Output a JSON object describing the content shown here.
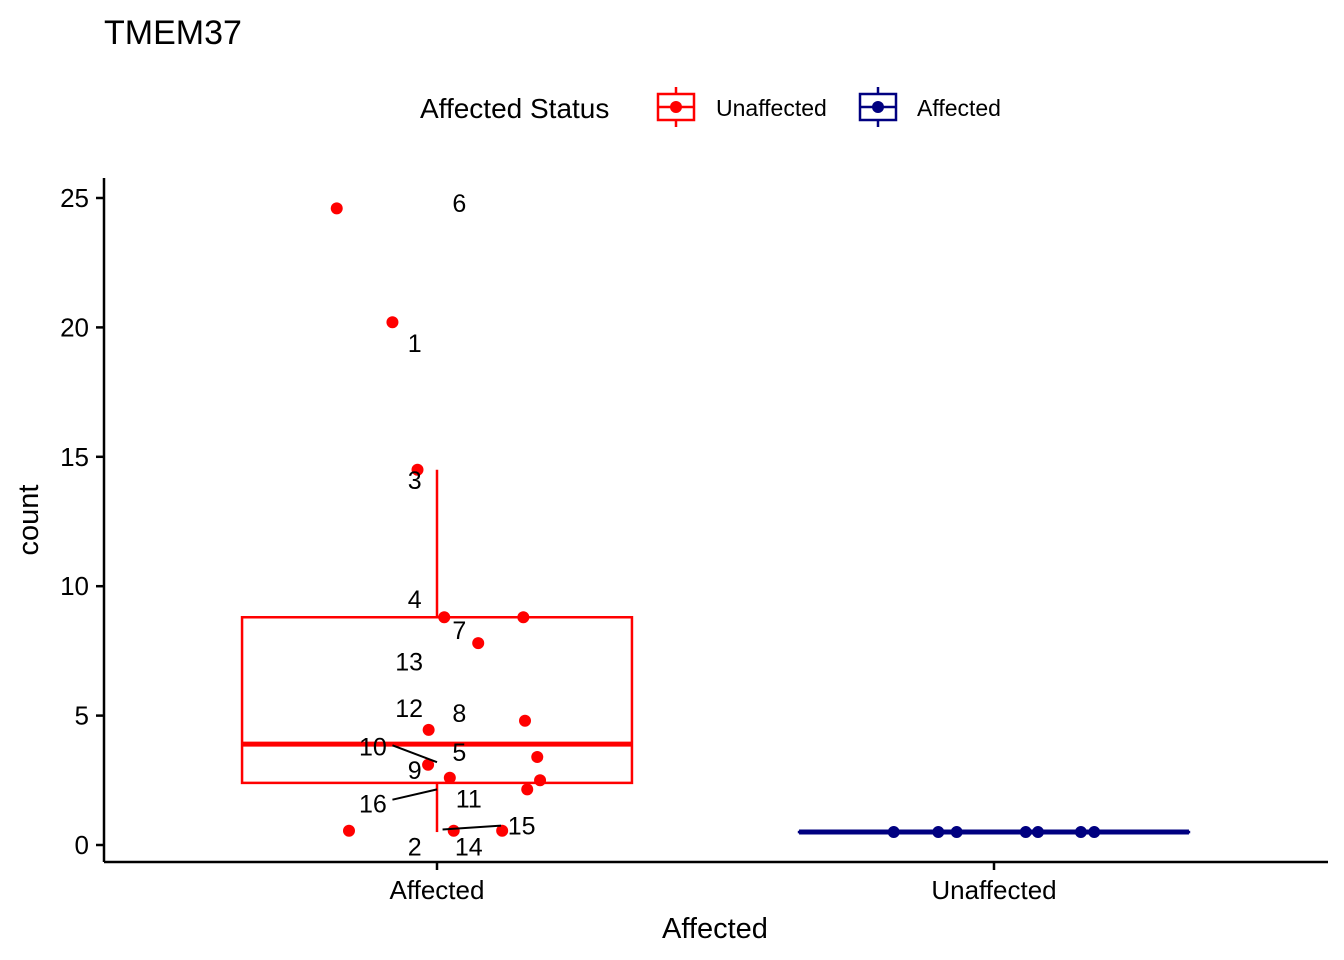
{
  "chart_data": {
    "type": "boxplot",
    "title": "TMEM37",
    "xlabel": "Affected",
    "ylabel": "count",
    "ylim": [
      -0.7,
      25.8
    ],
    "yticks": [
      0,
      5,
      10,
      15,
      20,
      25
    ],
    "categories": [
      "Affected",
      "Unaffected"
    ],
    "legend": {
      "title": "Affected Status",
      "position": "top",
      "entries": [
        {
          "name": "Unaffected",
          "color": "#ff0000"
        },
        {
          "name": "Affected",
          "color": "#000080"
        }
      ]
    },
    "boxes": [
      {
        "category": "Affected",
        "color": "#ff0000",
        "q1": 2.4,
        "median": 3.9,
        "q3": 8.8,
        "whisker_low": 0.5,
        "whisker_high": 14.5
      },
      {
        "category": "Unaffected",
        "color": "#000080",
        "q1": 0.5,
        "median": 0.5,
        "q3": 0.5,
        "whisker_low": 0.5,
        "whisker_high": 0.5
      }
    ],
    "points": [
      {
        "category": "Affected",
        "jitter": -0.18,
        "y": 24.6,
        "label": "6"
      },
      {
        "category": "Affected",
        "jitter": -0.08,
        "y": 20.2,
        "label": "1"
      },
      {
        "category": "Affected",
        "jitter": -0.035,
        "y": 14.5,
        "label": "3"
      },
      {
        "category": "Affected",
        "jitter": 0.013,
        "y": 8.8,
        "label": "4"
      },
      {
        "category": "Affected",
        "jitter": 0.074,
        "y": 7.8,
        "label": "7"
      },
      {
        "category": "Affected",
        "jitter": 0.155,
        "y": 8.8,
        "label": "13"
      },
      {
        "category": "Affected",
        "jitter": -0.015,
        "y": 4.45,
        "label": "12"
      },
      {
        "category": "Affected",
        "jitter": 0.158,
        "y": 4.8,
        "label": "8"
      },
      {
        "category": "Affected",
        "jitter": 0.18,
        "y": 3.4,
        "label": "5"
      },
      {
        "category": "Affected",
        "jitter": -0.016,
        "y": 3.1,
        "label": "10"
      },
      {
        "category": "Affected",
        "jitter": 0.023,
        "y": 2.6,
        "label": "9"
      },
      {
        "category": "Affected",
        "jitter": 0.185,
        "y": 2.5,
        "label": "11"
      },
      {
        "category": "Affected",
        "jitter": 0.162,
        "y": 2.15,
        "label": "16"
      },
      {
        "category": "Affected",
        "jitter": -0.158,
        "y": 0.55,
        "label": "2"
      },
      {
        "category": "Affected",
        "jitter": 0.03,
        "y": 0.55,
        "label": "14"
      },
      {
        "category": "Affected",
        "jitter": 0.117,
        "y": 0.55,
        "label": "15"
      },
      {
        "category": "Unaffected",
        "jitter": -0.18,
        "y": 0.5
      },
      {
        "category": "Unaffected",
        "jitter": -0.1,
        "y": 0.5
      },
      {
        "category": "Unaffected",
        "jitter": -0.067,
        "y": 0.5
      },
      {
        "category": "Unaffected",
        "jitter": 0.057,
        "y": 0.5
      },
      {
        "category": "Unaffected",
        "jitter": 0.079,
        "y": 0.5
      },
      {
        "category": "Unaffected",
        "jitter": 0.156,
        "y": 0.5
      },
      {
        "category": "Unaffected",
        "jitter": 0.18,
        "y": 0.5
      }
    ],
    "point_labels": [
      {
        "text": "6",
        "x_offset": 0.04,
        "y": 24.8,
        "leader": false
      },
      {
        "text": "1",
        "x_offset": -0.04,
        "y": 19.4,
        "leader": false
      },
      {
        "text": "3",
        "x_offset": -0.04,
        "y": 14.1,
        "leader": false
      },
      {
        "text": "4",
        "x_offset": -0.04,
        "y": 9.5,
        "leader": false
      },
      {
        "text": "7",
        "x_offset": 0.04,
        "y": 8.3,
        "leader": false
      },
      {
        "text": "13",
        "x_offset": -0.05,
        "y": 7.1,
        "leader": false
      },
      {
        "text": "12",
        "x_offset": -0.05,
        "y": 5.3,
        "leader": false
      },
      {
        "text": "8",
        "x_offset": 0.04,
        "y": 5.1,
        "leader": false
      },
      {
        "text": "10",
        "x_offset": -0.115,
        "y": 3.8,
        "leader": true,
        "leader_from": [
          -0.08,
          3.85
        ],
        "leader_to": [
          0.0,
          3.2
        ]
      },
      {
        "text": "5",
        "x_offset": 0.04,
        "y": 3.6,
        "leader": false
      },
      {
        "text": "9",
        "x_offset": -0.04,
        "y": 2.9,
        "leader": false
      },
      {
        "text": "11",
        "x_offset": 0.057,
        "y": 1.8,
        "leader": false
      },
      {
        "text": "16",
        "x_offset": -0.115,
        "y": 1.6,
        "leader": true,
        "leader_from": [
          -0.08,
          1.75
        ],
        "leader_to": [
          0.0,
          2.15
        ]
      },
      {
        "text": "15",
        "x_offset": 0.152,
        "y": 0.75,
        "leader": true,
        "leader_from": [
          0.115,
          0.75
        ],
        "leader_to": [
          0.01,
          0.6
        ]
      },
      {
        "text": "2",
        "x_offset": -0.04,
        "y": -0.05,
        "leader": false
      },
      {
        "text": "14",
        "x_offset": 0.057,
        "y": -0.05,
        "leader": false
      }
    ]
  }
}
